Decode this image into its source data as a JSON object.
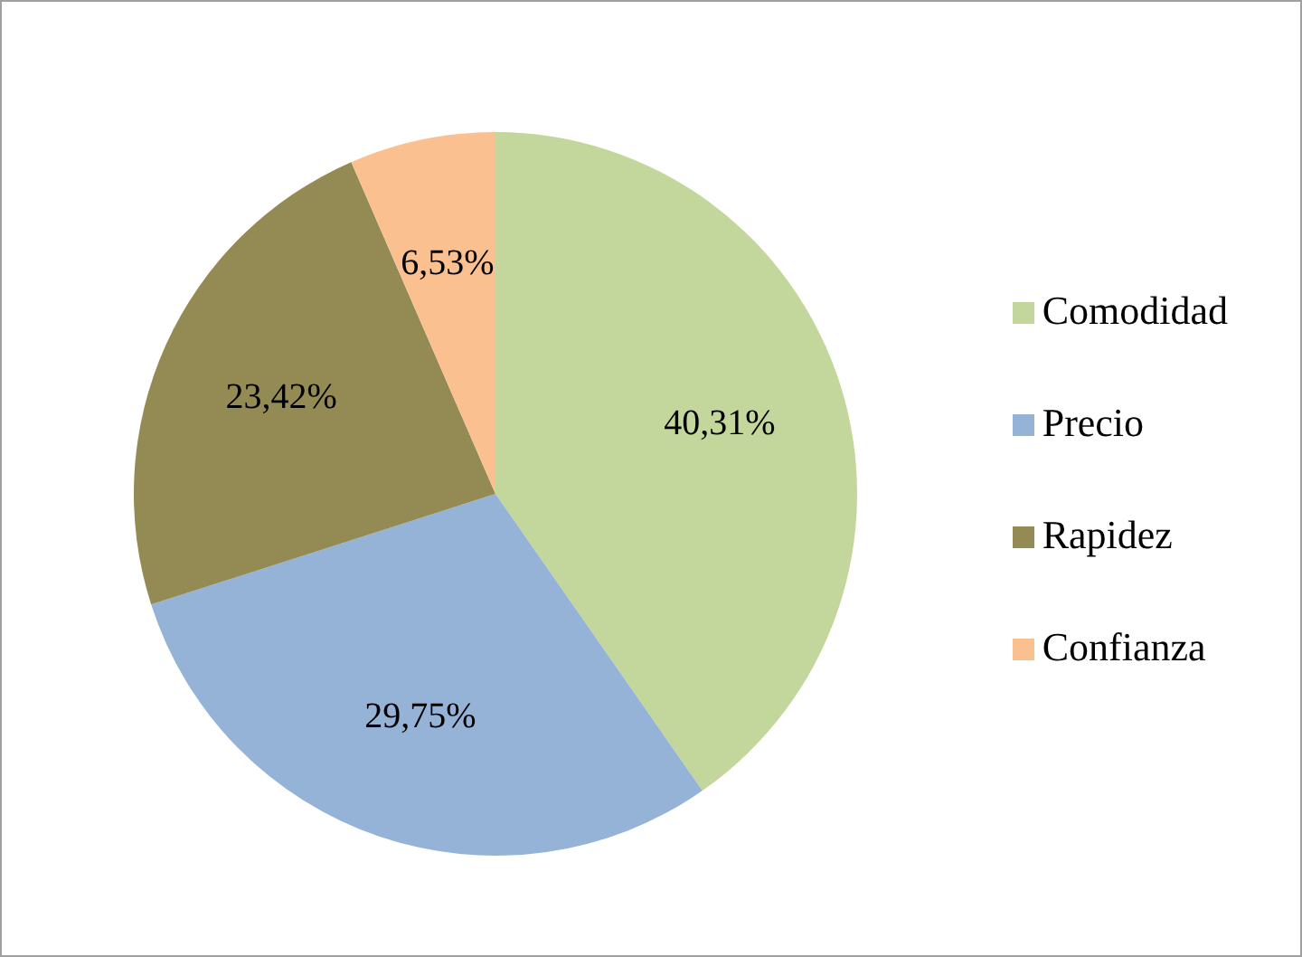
{
  "chart_data": {
    "type": "pie",
    "categories": [
      "Comodidad",
      "Precio",
      "Rapidez",
      "Confianza"
    ],
    "values": [
      40.31,
      29.75,
      23.42,
      6.53
    ],
    "value_labels": [
      "40,31%",
      "29,75%",
      "23,42%",
      "6,53%"
    ],
    "colors": [
      "#c3d69b",
      "#95b3d7",
      "#948a54",
      "#fac090"
    ],
    "legend": "right"
  }
}
